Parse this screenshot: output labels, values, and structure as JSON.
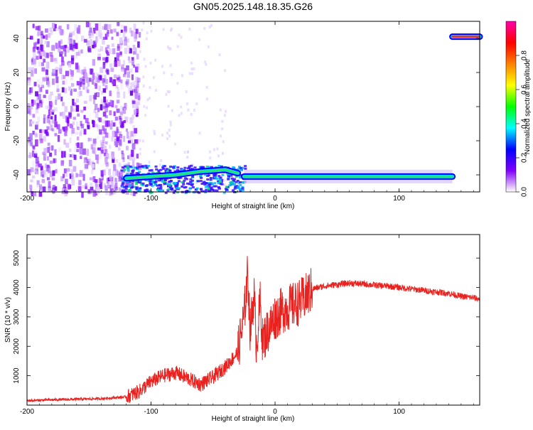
{
  "title": "GN05.2025.148.18.35.G26",
  "chart_data": [
    {
      "type": "heatmap",
      "xlabel": "Height of straight line (km)",
      "ylabel": "Frequency (Hz)",
      "xlim": [
        -200,
        165
      ],
      "ylim": [
        -50,
        50
      ],
      "xticks": [
        -200,
        -100,
        0,
        100
      ],
      "yticks": [
        -40,
        -20,
        0,
        20,
        40
      ],
      "colorbar": {
        "label": "Normalized spectral amplitude",
        "range": [
          0,
          1
        ],
        "ticks": [
          "0.0",
          "0.2",
          "0.4",
          "0.6",
          "0.8"
        ],
        "colors": [
          "#ffffff",
          "#8000ff",
          "#0000ff",
          "#00ffff",
          "#00ff00",
          "#ffff00",
          "#ff8000",
          "#ff0000",
          "#ff00aa"
        ]
      },
      "tracks": [
        {
          "x": [
            -120,
            -100,
            -80,
            -60,
            -40,
            -30
          ],
          "y": [
            -42,
            -41,
            -40,
            -38,
            -37,
            -39
          ],
          "amplitude": 0.45
        },
        {
          "x": [
            -25,
            0,
            50,
            100,
            143
          ],
          "y": [
            -41,
            -41,
            -41,
            -41,
            -41
          ],
          "amplitude": 0.45
        },
        {
          "x": [
            143,
            165
          ],
          "y": [
            41,
            41
          ],
          "amplitude": 0.85
        }
      ]
    },
    {
      "type": "line",
      "xlabel": "Height of straight line (km)",
      "ylabel": "SNR (10 * v/v)",
      "xlim": [
        -200,
        165
      ],
      "ylim": [
        0,
        5800
      ],
      "xticks": [
        -200,
        -100,
        0,
        100
      ],
      "yticks": [
        1000,
        2000,
        3000,
        4000,
        5000
      ],
      "color": "#e8221f",
      "series": [
        {
          "x": [
            -200,
            -180,
            -160,
            -140,
            -120,
            -110,
            -100,
            -90,
            -80,
            -70,
            -60,
            -50,
            -40,
            -30,
            -25,
            -22,
            -20,
            -17,
            -15,
            -12,
            -10,
            -5,
            0,
            5,
            10,
            15,
            20,
            25,
            30,
            40,
            50,
            60,
            70,
            80,
            90,
            100,
            110,
            120,
            130,
            140,
            150,
            160,
            165
          ],
          "y": [
            150,
            180,
            200,
            220,
            280,
            450,
            800,
            1000,
            1100,
            900,
            700,
            950,
            1300,
            1800,
            3000,
            4500,
            2500,
            3800,
            2000,
            3500,
            2200,
            2600,
            3000,
            3200,
            3300,
            3400,
            3500,
            3700,
            3950,
            4050,
            4100,
            4150,
            4120,
            4080,
            4050,
            4000,
            3950,
            3900,
            3850,
            3800,
            3700,
            3650,
            3600
          ]
        }
      ]
    }
  ]
}
